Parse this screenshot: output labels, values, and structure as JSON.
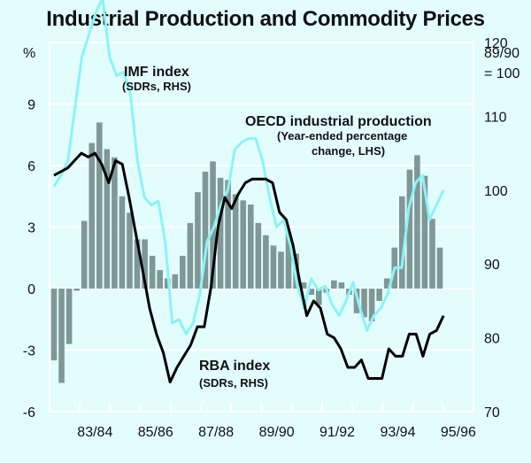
{
  "chart_data": {
    "type": "bar+line",
    "title": "Industrial Production and Commodity Prices",
    "left_axis": {
      "unit_label": "%",
      "ylim": [
        -6,
        12
      ],
      "ticks": [
        -6,
        -3,
        0,
        3,
        6,
        9
      ],
      "tick_labels": [
        "-6",
        "-3",
        "0",
        "3",
        "6",
        "9"
      ]
    },
    "right_axis": {
      "unit_label_lines": [
        "89/90",
        "= 100"
      ],
      "ylim": [
        70,
        120
      ],
      "ticks": [
        70,
        80,
        90,
        100,
        110,
        120
      ],
      "tick_labels": [
        "70",
        "80",
        "90",
        "100",
        "110",
        "120"
      ]
    },
    "x_axis": {
      "tick_labels": [
        "83/84",
        "85/86",
        "87/88",
        "89/90",
        "91/92",
        "93/94",
        "95/96"
      ],
      "label_positions_quarter_index": [
        6,
        14,
        22,
        30,
        38,
        46,
        54
      ]
    },
    "grid": true,
    "series": [
      {
        "name": "OECD industrial production",
        "label_lines": [
          "OECD industrial production",
          "(Year-ended percentage",
          "change, LHS)"
        ],
        "type": "bar",
        "axis": "left",
        "color": "#7f9896",
        "values": [
          -3.5,
          -4.6,
          -2.7,
          -0.1,
          3.3,
          7.1,
          8.1,
          6.8,
          6.4,
          4.5,
          3.7,
          2.4,
          2.4,
          1.6,
          0.9,
          0.5,
          0.7,
          1.6,
          3.2,
          4.7,
          5.7,
          6.2,
          5.4,
          5.3,
          4.6,
          4.3,
          4.1,
          3.2,
          2.6,
          2.1,
          1.8,
          2.7,
          1.7,
          0.3,
          -0.3,
          -0.8,
          -0.2,
          0.4,
          0.3,
          -0.3,
          -1.2,
          -1.4,
          -1.6,
          -0.6,
          0.5,
          2.0,
          4.5,
          5.8,
          6.5,
          5.5,
          3.4,
          2.0
        ]
      },
      {
        "name": "IMF index",
        "label_lines": [
          "IMF index",
          "(SDRs, RHS)"
        ],
        "type": "line",
        "axis": "right",
        "color": "#8af4f8",
        "values": [
          100.5,
          102,
          104,
          111,
          118,
          121,
          124,
          126,
          118,
          115.5,
          116,
          113,
          104,
          99,
          98,
          98.5,
          93,
          82,
          82.5,
          80.5,
          82,
          86,
          93,
          95,
          98,
          100,
          105.5,
          106.5,
          107,
          107,
          104,
          99,
          95,
          96,
          92.5,
          87,
          84,
          88,
          86.5,
          87,
          84.5,
          83,
          85,
          87.5,
          84,
          81,
          83,
          84,
          86,
          89.5,
          89.5,
          97.5,
          101,
          102,
          96,
          98,
          100
        ]
      },
      {
        "name": "RBA index",
        "label_lines": [
          "RBA index",
          "(SDRs, RHS)"
        ],
        "type": "line",
        "axis": "right",
        "color": "#000000",
        "values": [
          102,
          102.5,
          103,
          104,
          105,
          104.5,
          105,
          103.5,
          101,
          104,
          103.5,
          99,
          94,
          89,
          84,
          80.5,
          78,
          74,
          76,
          77.5,
          79,
          81.5,
          81.5,
          87,
          95,
          99,
          97.5,
          99.5,
          101,
          101.5,
          101.5,
          101.5,
          101,
          97,
          96,
          92.5,
          87.5,
          83,
          85,
          84,
          80.5,
          80,
          78.5,
          76,
          76,
          77,
          74.5,
          74.5,
          74.5,
          78.5,
          77.5,
          77.5,
          80.5,
          80.5,
          77.5,
          80.5,
          81,
          83
        ]
      }
    ]
  }
}
